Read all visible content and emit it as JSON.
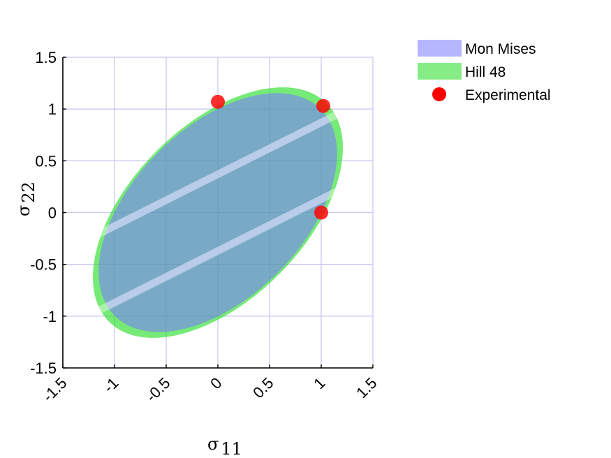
{
  "chart_data": {
    "type": "area",
    "title": "",
    "xlabel": "σ₁₁",
    "ylabel": "σ₂₂",
    "xlabel_parts": {
      "symbol": "σ",
      "subscript": "11"
    },
    "ylabel_parts": {
      "symbol": "σ",
      "subscript": "22"
    },
    "xlim": [
      -1.5,
      1.5
    ],
    "ylim": [
      -1.5,
      1.5
    ],
    "xticks": [
      -1.5,
      -1,
      -0.5,
      0,
      0.5,
      1,
      1.5
    ],
    "yticks": [
      -1.5,
      -1,
      -0.5,
      0,
      0.5,
      1,
      1.5
    ],
    "xtick_labels": [
      "-1.5",
      "-1",
      "-0.5",
      "0",
      "0.5",
      "1",
      "1.5"
    ],
    "ytick_labels": [
      "-1.5",
      "-1",
      "-0.5",
      "0",
      "0.5",
      "1",
      "1.5"
    ],
    "grid": true,
    "legend_position": "outside-top-right",
    "series": [
      {
        "name": "Mon Mises",
        "kind": "yield-surface",
        "color": "#7a7aff",
        "ellipse": {
          "a": 1.41,
          "b": 0.82,
          "angle_deg": 45
        },
        "band": {
          "slope": 0.5,
          "half_width": 0.37,
          "thickness": 0.08
        }
      },
      {
        "name": "Hill 48",
        "kind": "yield-surface",
        "color": "#22dd22",
        "ellipse": {
          "a": 1.49,
          "b": 0.84,
          "angle_deg": 45
        },
        "band": {
          "slope": 0.5,
          "half_width": 0.37,
          "thickness": 0.08
        }
      },
      {
        "name": "Experimental",
        "kind": "points",
        "color": "#ff0000",
        "x": [
          0,
          1.02,
          1.0
        ],
        "y": [
          1.07,
          1.03,
          0.0
        ]
      }
    ]
  }
}
